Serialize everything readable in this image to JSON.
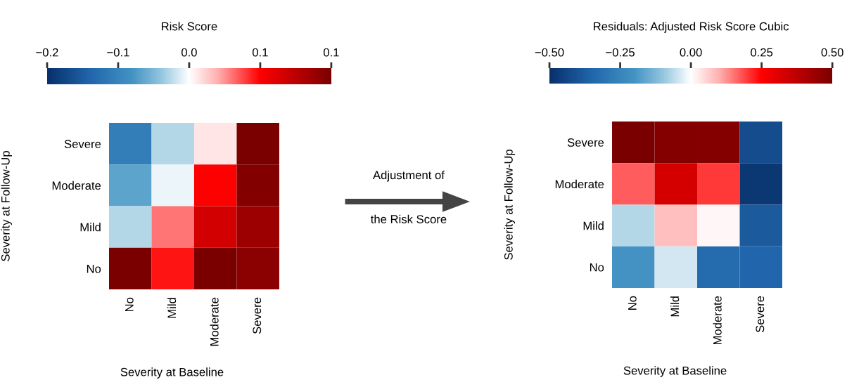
{
  "chart_data": [
    {
      "type": "heatmap",
      "clabel": "Risk Score",
      "xlabel": "Severity at Baseline",
      "ylabel": "Severity at Follow-Up",
      "categories": [
        "No",
        "Mild",
        "Moderate",
        "Severe"
      ],
      "y_categories": [
        "Severe",
        "Moderate",
        "Mild",
        "No"
      ],
      "cells": [
        [
          -0.08,
          -0.02,
          0.01,
          0.15
        ],
        [
          -0.05,
          -0.005,
          0.075,
          0.145
        ],
        [
          -0.02,
          0.045,
          0.1,
          0.13
        ],
        [
          0.15,
          0.07,
          0.15,
          0.14
        ]
      ],
      "clim": [
        -0.15,
        0.15
      ],
      "cticks": [
        {
          "value": -0.15,
          "label": "−0.2"
        },
        {
          "value": -0.075,
          "label": "−0.1"
        },
        {
          "value": 0,
          "label": "0.0"
        },
        {
          "value": 0.075,
          "label": "0.1"
        },
        {
          "value": 0.15,
          "label": "0.1"
        }
      ]
    },
    {
      "type": "other",
      "annotations": [
        "Adjustment of",
        "the Risk Score"
      ]
    },
    {
      "type": "heatmap",
      "clabel": "Residuals: Adjusted Risk Score Cubic",
      "xlabel": "Severity at Baseline",
      "ylabel": "Severity at Follow-Up",
      "categories": [
        "No",
        "Mild",
        "Moderate",
        "Severe"
      ],
      "y_categories": [
        "Severe",
        "Moderate",
        "Mild",
        "No"
      ],
      "cells": [
        [
          0.5,
          0.48,
          0.48,
          -0.42
        ],
        [
          0.17,
          0.33,
          0.2,
          -0.48
        ],
        [
          -0.07,
          0.08,
          0.01,
          -0.38
        ],
        [
          -0.2,
          -0.04,
          -0.33,
          -0.35
        ]
      ],
      "clim": [
        -0.5,
        0.5
      ],
      "cticks": [
        {
          "value": -0.5,
          "label": "−0.50"
        },
        {
          "value": -0.25,
          "label": "−0.25"
        },
        {
          "value": 0,
          "label": "0.00"
        },
        {
          "value": 0.25,
          "label": "0.25"
        },
        {
          "value": 0.5,
          "label": "0.50"
        }
      ]
    }
  ]
}
